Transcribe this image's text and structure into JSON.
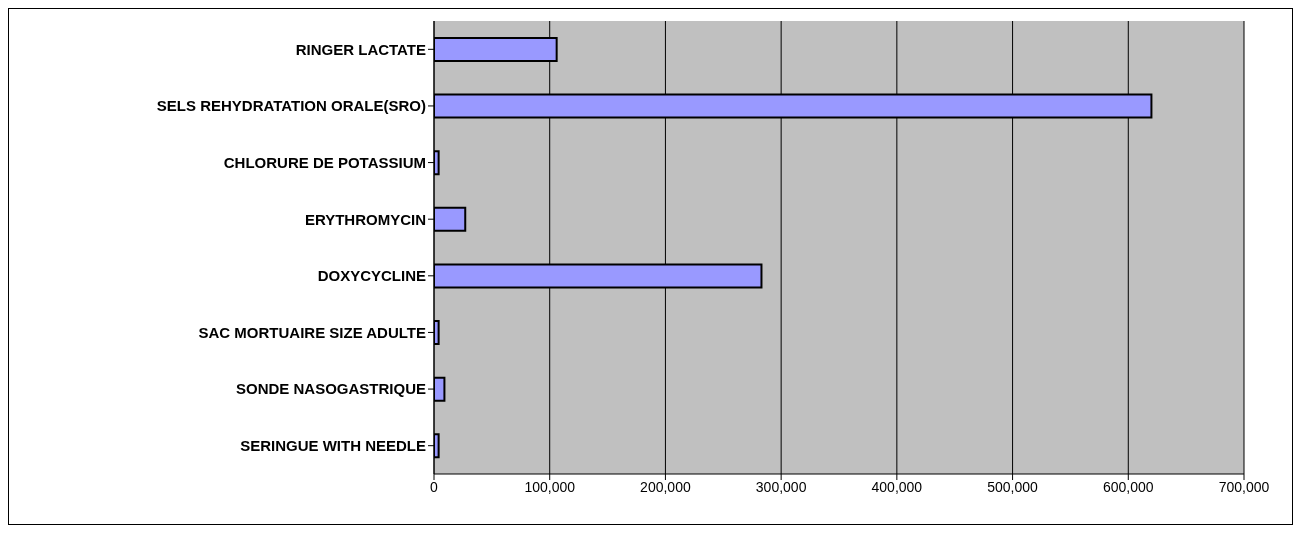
{
  "chart_data": {
    "type": "bar",
    "orientation": "horizontal",
    "categories": [
      "RINGER LACTATE",
      "SELS REHYDRATATION ORALE(SRO)",
      "CHLORURE DE POTASSIUM",
      "ERYTHROMYCIN",
      "DOXYCYCLINE",
      "SAC MORTUAIRE SIZE ADULTE",
      "SONDE NASOGASTRIQUE",
      "SERINGUE WITH NEEDLE"
    ],
    "values": [
      106000,
      620000,
      4000,
      27000,
      283000,
      4000,
      9000,
      4000
    ],
    "color": "#9999ff",
    "xlim": [
      0,
      700000
    ],
    "xticks": [
      0,
      {
        "value": 100000,
        "label": "100,000"
      },
      {
        "value": 200000,
        "label": "200,000"
      },
      {
        "value": 300000,
        "label": "300,000"
      },
      {
        "value": 400000,
        "label": "400,000"
      },
      {
        "value": 500000,
        "label": "500,000"
      },
      {
        "value": 600000,
        "label": "600,000"
      },
      {
        "value": 700000,
        "label": "700,000"
      }
    ],
    "grid": "x"
  }
}
